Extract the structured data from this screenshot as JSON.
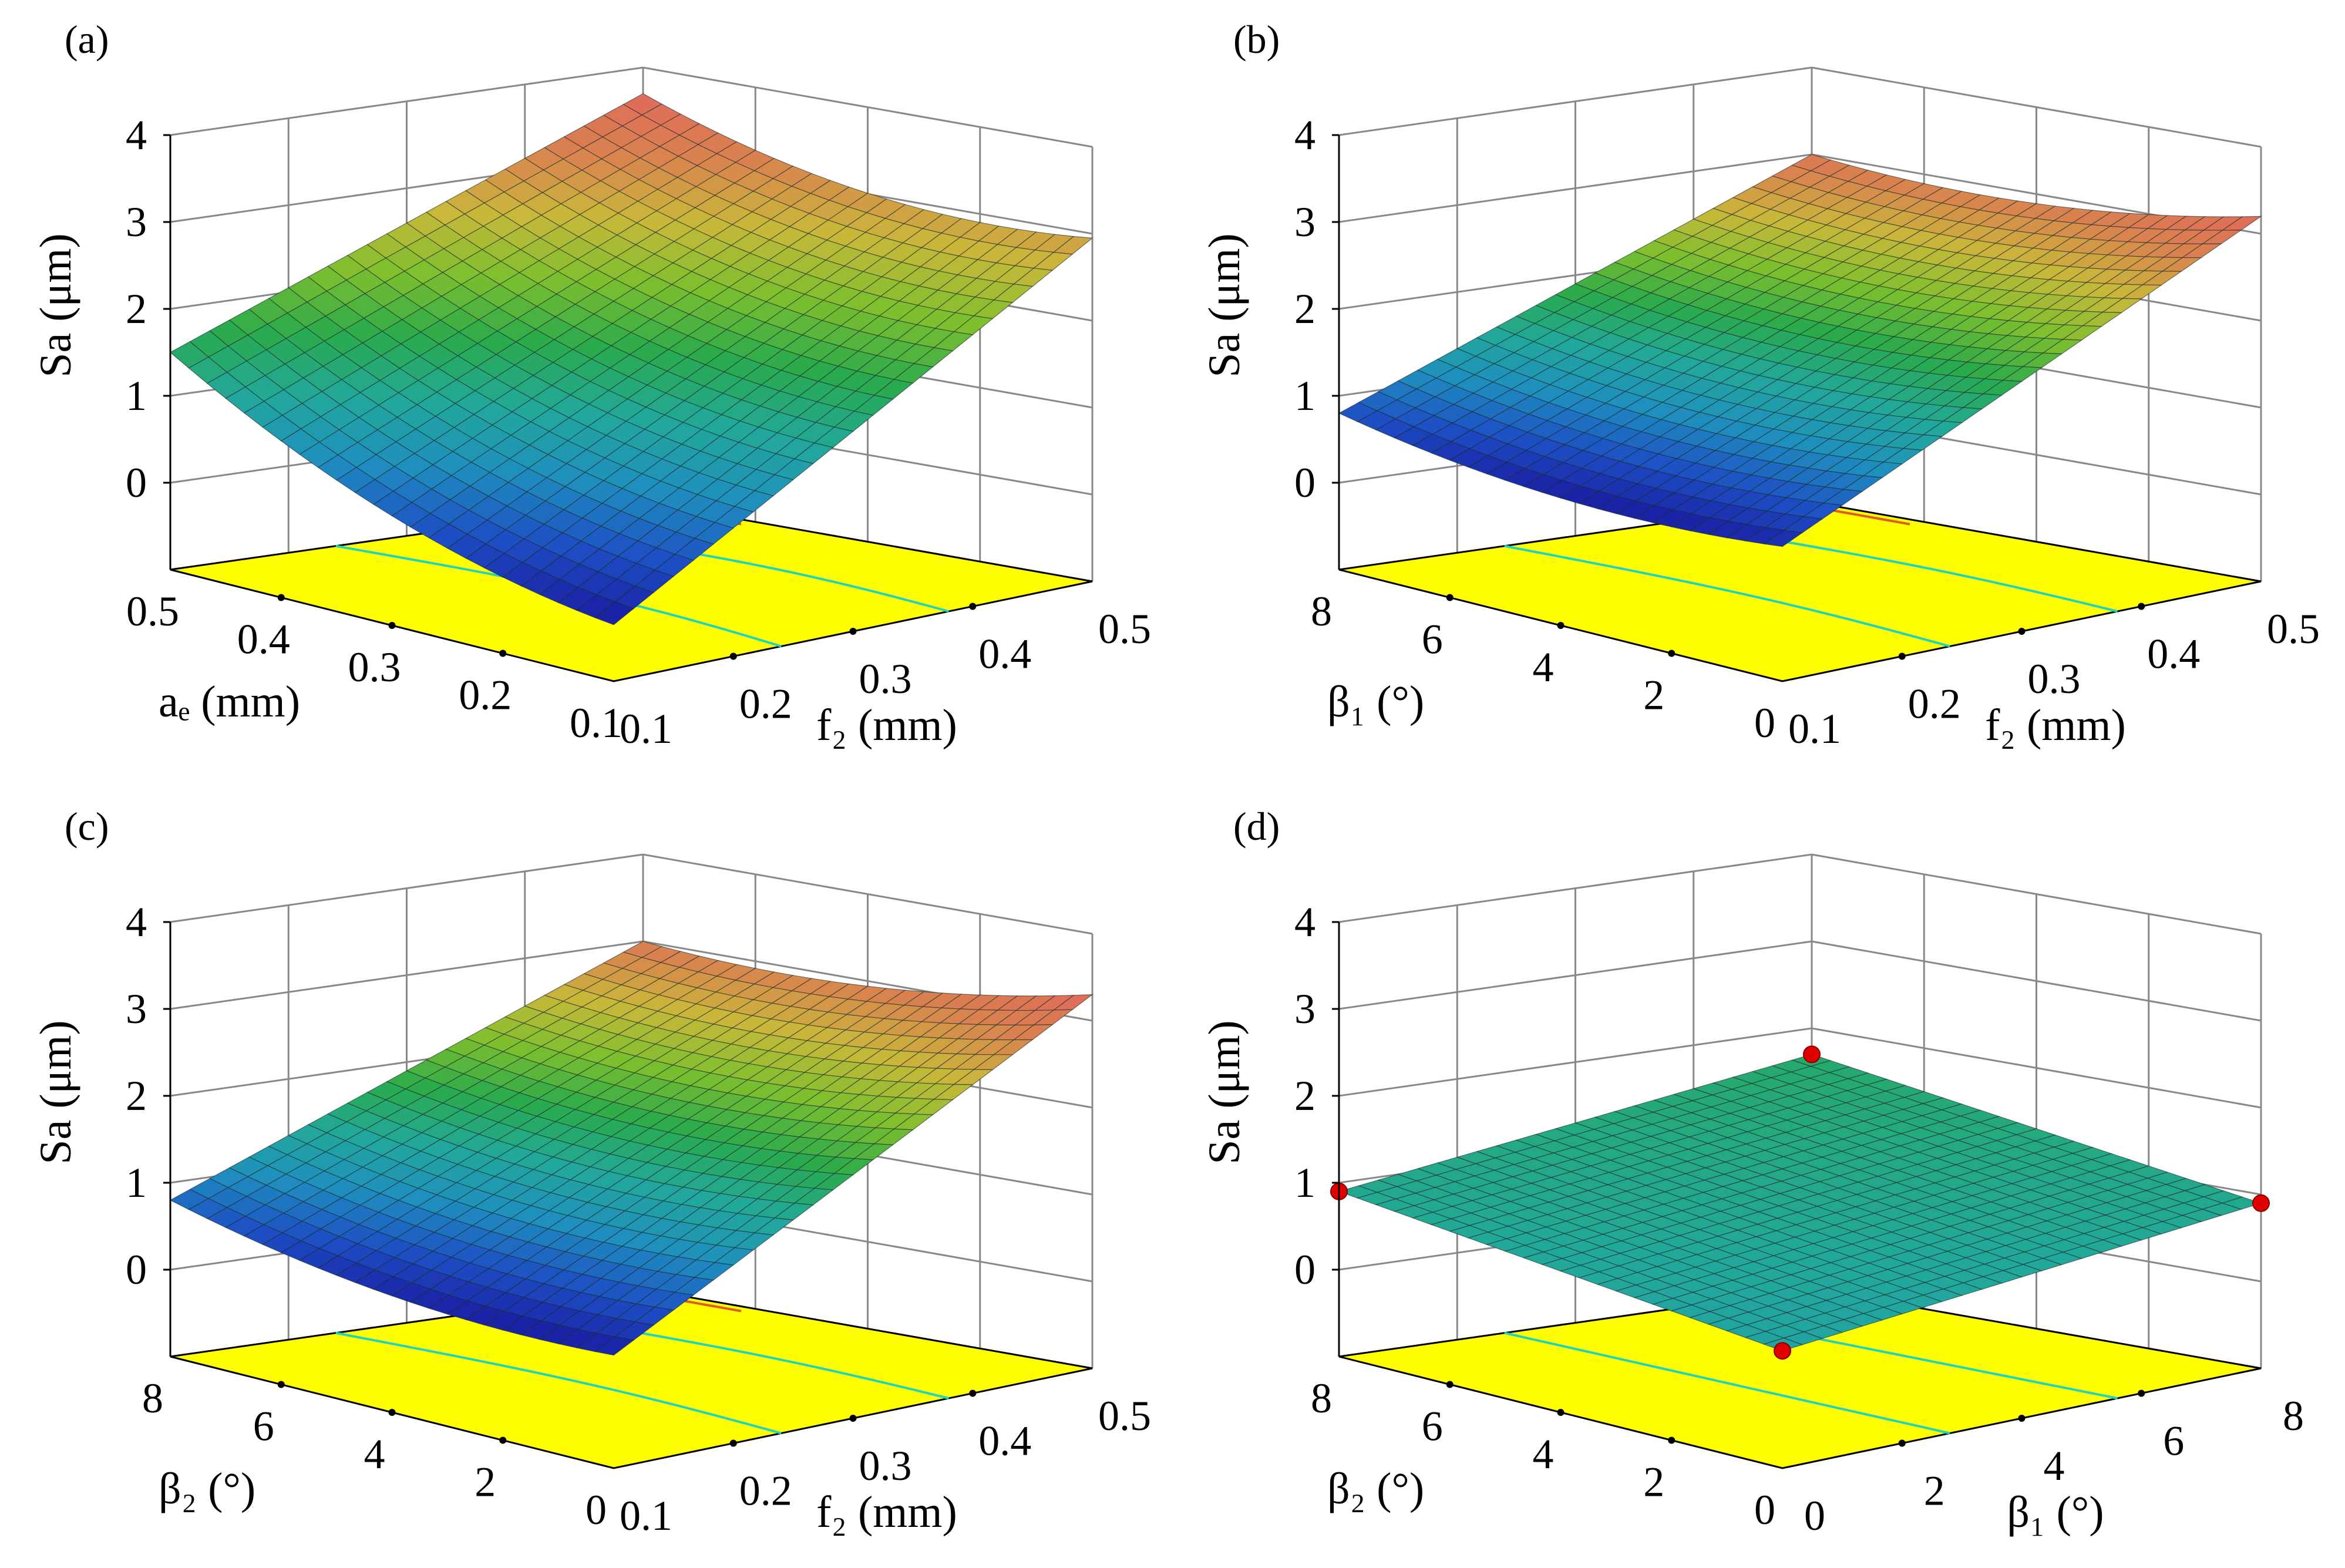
{
  "colors": {
    "floor": "#FFFF00",
    "contour": "#22D5B8",
    "contour_high": "#E05A2A",
    "grid": "#888888",
    "design_point": "#E00000"
  },
  "colormap": [
    "#1A1AA0",
    "#1D4FC4",
    "#1F8FBE",
    "#22A89A",
    "#2AAA4C",
    "#7DBF2E",
    "#C9B83A",
    "#D9824F",
    "#E06A5A"
  ],
  "chart_data": [
    {
      "id": "a",
      "panel_label": "(a)",
      "type": "surface",
      "z_label": "Sa (μm)",
      "z_ticks": [
        "0",
        "1",
        "2",
        "3",
        "4"
      ],
      "x_label": "aₑ (mm)",
      "x_ticks": [
        "0.5",
        "0.4",
        "0.3",
        "0.2",
        "0.1"
      ],
      "y_label": "f₂ (mm)",
      "y_ticks": [
        "0.1",
        "0.2",
        "0.3",
        "0.4",
        "0.5"
      ],
      "zlim": [
        -1,
        4
      ],
      "surface_corners": {
        "left": 1.5,
        "front": -0.35,
        "right": 2.95,
        "back": 3.7
      },
      "curvature": 0.9,
      "design_points": []
    },
    {
      "id": "b",
      "panel_label": "(b)",
      "type": "surface",
      "z_label": "Sa (μm)",
      "z_ticks": [
        "0",
        "1",
        "2",
        "3",
        "4"
      ],
      "x_label": "β₁ (°)",
      "x_ticks": [
        "8",
        "6",
        "4",
        "2",
        "0"
      ],
      "y_label": "f₂ (mm)",
      "y_ticks": [
        "0.1",
        "0.2",
        "0.3",
        "0.4",
        "0.5"
      ],
      "zlim": [
        -1,
        4
      ],
      "surface_corners": {
        "left": 0.8,
        "front": 0.55,
        "right": 3.2,
        "back": 3.0
      },
      "curvature": 0.6,
      "design_points": []
    },
    {
      "id": "c",
      "panel_label": "(c)",
      "type": "surface",
      "z_label": "Sa (μm)",
      "z_ticks": [
        "0",
        "1",
        "2",
        "3",
        "4"
      ],
      "x_label": "β₂ (°)",
      "x_ticks": [
        "8",
        "6",
        "4",
        "2",
        "0"
      ],
      "y_label": "f₂ (mm)",
      "y_ticks": [
        "0.1",
        "0.2",
        "0.3",
        "0.4",
        "0.5"
      ],
      "zlim": [
        -1,
        4
      ],
      "surface_corners": {
        "left": 0.8,
        "front": 0.3,
        "right": 3.3,
        "back": 3.0
      },
      "curvature": 0.6,
      "design_points": []
    },
    {
      "id": "d",
      "panel_label": "(d)",
      "type": "surface",
      "z_label": "Sa (μm)",
      "z_ticks": [
        "0",
        "1",
        "2",
        "3",
        "4"
      ],
      "x_label": "β₂ (°)",
      "x_ticks": [
        "8",
        "6",
        "4",
        "2",
        "0"
      ],
      "y_label": "β₁ (°)",
      "y_ticks": [
        "0",
        "2",
        "4",
        "6",
        "8"
      ],
      "zlim": [
        -1,
        4
      ],
      "surface_corners": {
        "left": 0.9,
        "front": 0.35,
        "right": 0.9,
        "back": 1.7
      },
      "curvature": 0.0,
      "design_points": [
        "left",
        "front",
        "right",
        "back"
      ]
    }
  ]
}
